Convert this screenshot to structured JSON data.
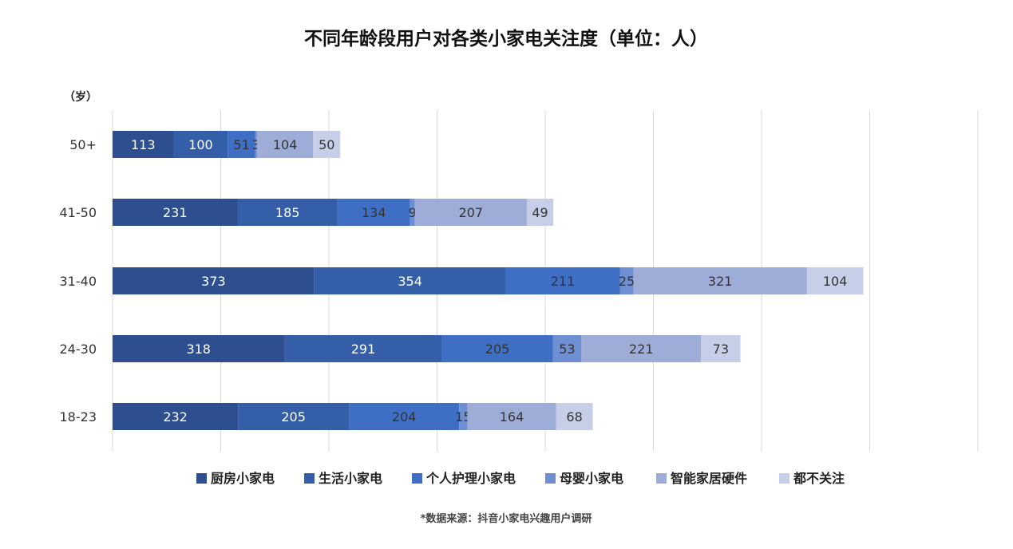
{
  "chart_data": {
    "type": "bar",
    "orientation": "horizontal",
    "stacked": true,
    "title": "不同年龄段用户对各类小家电关注度（单位：人）",
    "ylabel": "（岁）",
    "categories": [
      "50+",
      "41-50",
      "31-40",
      "24-30",
      "18-23"
    ],
    "series": [
      {
        "name": "厨房小家电",
        "color": "#2e4f8f",
        "values": [
          113,
          231,
          373,
          318,
          232
        ]
      },
      {
        "name": "生活小家电",
        "color": "#355ea8",
        "values": [
          100,
          185,
          354,
          291,
          205
        ]
      },
      {
        "name": "个人护理小家电",
        "color": "#3f6fc4",
        "values": [
          51,
          134,
          211,
          205,
          204
        ]
      },
      {
        "name": "母婴小家电",
        "color": "#6e8fd2",
        "values": [
          3,
          9,
          25,
          53,
          15
        ]
      },
      {
        "name": "智能家居硬件",
        "color": "#9eadd8",
        "values": [
          104,
          207,
          321,
          221,
          164
        ]
      },
      {
        "name": "都不关注",
        "color": "#c7cfe8",
        "values": [
          50,
          49,
          104,
          73,
          68
        ]
      }
    ],
    "xlim": [
      0,
      1600
    ],
    "grid": true,
    "legend_position": "bottom"
  },
  "footnote": "*数据来源：抖音小家电兴趣用户调研"
}
